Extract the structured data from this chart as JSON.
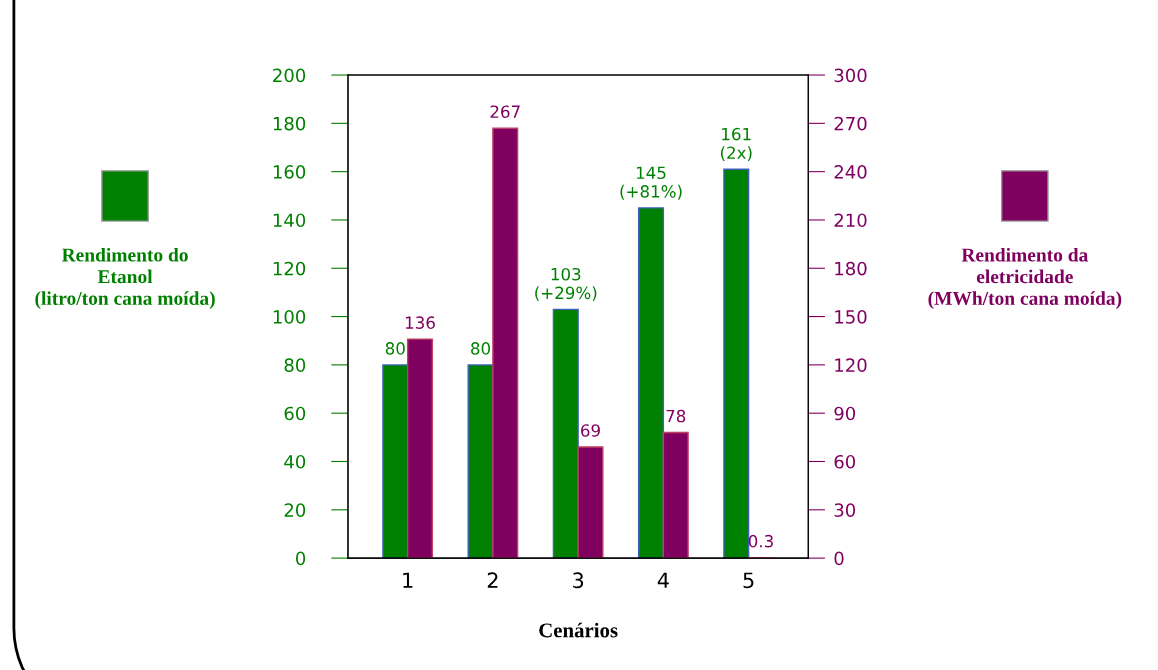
{
  "chart_data": {
    "type": "bar",
    "xlabel": "Cenários",
    "categories": [
      "1",
      "2",
      "3",
      "4",
      "5"
    ],
    "series": [
      {
        "name": "Rendimento do Etanol (litro/ton cana moída)",
        "color": "#008000",
        "values": [
          80,
          80,
          103,
          145,
          161
        ],
        "value_labels": [
          "80",
          "80",
          "103\n(+29%)",
          "145\n(+81%)",
          "161\n(2x)"
        ]
      },
      {
        "name": "Rendimento da eletricidade (MWh/ton cana moída)",
        "color": "#800060",
        "axis": "y2",
        "values": [
          136,
          267,
          69,
          78,
          0.3
        ],
        "value_labels": [
          "136",
          "267",
          "69",
          "78",
          "0.3"
        ]
      }
    ],
    "ylim": [
      0,
      200
    ],
    "yticks": [
      0,
      20,
      40,
      60,
      80,
      100,
      120,
      140,
      160,
      180,
      200
    ],
    "y2lim": [
      0,
      300
    ],
    "y2ticks": [
      0,
      30,
      60,
      90,
      120,
      150,
      180,
      210,
      240,
      270,
      300
    ],
    "grid": false,
    "legend": "left"
  }
}
